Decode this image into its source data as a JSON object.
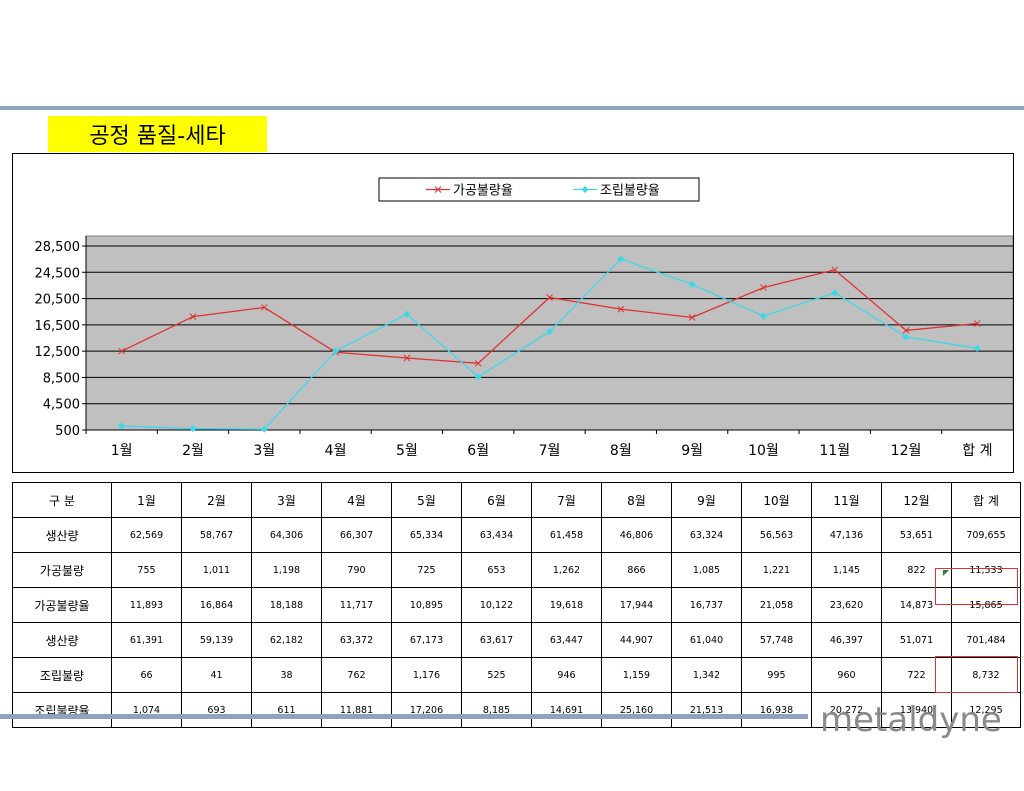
{
  "page_title": "공정 품질-세타",
  "logo_text": "metaldyne",
  "colors": {
    "title_bg": "#ffff00",
    "rule": "#8fa3c0",
    "plot_bg": "#c0c0c0",
    "series1": "#e03030",
    "series2": "#3fd8e8",
    "highlight": "#e03030"
  },
  "chart_data": {
    "type": "line",
    "categories": [
      "1월",
      "2월",
      "3월",
      "4월",
      "5월",
      "6월",
      "7월",
      "8월",
      "9월",
      "10월",
      "11월",
      "12월",
      "합 계"
    ],
    "y_ticks": [
      "28,500",
      "24,500",
      "20,500",
      "16,500",
      "12,500",
      "8,500",
      "4,500",
      "500"
    ],
    "ylim": [
      500,
      28500
    ],
    "legend_position": "top-center",
    "grid": true,
    "series": [
      {
        "name": "가공불량율",
        "color": "#e03030",
        "marker": "x",
        "values": [
          11893,
          16864,
          18188,
          11717,
          10895,
          10122,
          19618,
          17944,
          16737,
          21058,
          23620,
          14873,
          15865
        ]
      },
      {
        "name": "조립불량율",
        "color": "#3fd8e8",
        "marker": "diamond",
        "values": [
          1074,
          693,
          611,
          11881,
          17206,
          8185,
          14691,
          25160,
          21513,
          16938,
          20272,
          13940,
          12295
        ]
      }
    ]
  },
  "table": {
    "headers": [
      "구  분",
      "1월",
      "2월",
      "3월",
      "4월",
      "5월",
      "6월",
      "7월",
      "8월",
      "9월",
      "10월",
      "11월",
      "12월",
      "합 계"
    ],
    "rows": [
      [
        "생산량",
        "62,569",
        "58,767",
        "64,306",
        "66,307",
        "65,334",
        "63,434",
        "61,458",
        "46,806",
        "63,324",
        "56,563",
        "47,136",
        "53,651",
        "709,655"
      ],
      [
        "가공불량",
        "755",
        "1,011",
        "1,198",
        "790",
        "725",
        "653",
        "1,262",
        "866",
        "1,085",
        "1,221",
        "1,145",
        "822",
        "11,533"
      ],
      [
        "가공불량율",
        "11,893",
        "16,864",
        "18,188",
        "11,717",
        "10,895",
        "10,122",
        "19,618",
        "17,944",
        "16,737",
        "21,058",
        "23,620",
        "14,873",
        "15,865"
      ],
      [
        "생산량",
        "61,391",
        "59,139",
        "62,182",
        "63,372",
        "67,173",
        "63,617",
        "63,447",
        "44,907",
        "61,040",
        "57,748",
        "46,397",
        "51,071",
        "701,484"
      ],
      [
        "조립불량",
        "66",
        "41",
        "38",
        "762",
        "1,176",
        "525",
        "946",
        "1,159",
        "1,342",
        "995",
        "960",
        "722",
        "8,732"
      ],
      [
        "조립불량율",
        "1,074",
        "693",
        "611",
        "11,881",
        "17,206",
        "8,185",
        "14,691",
        "25,160",
        "21,513",
        "16,938",
        "20,272",
        "13,940",
        "12,295"
      ]
    ]
  }
}
